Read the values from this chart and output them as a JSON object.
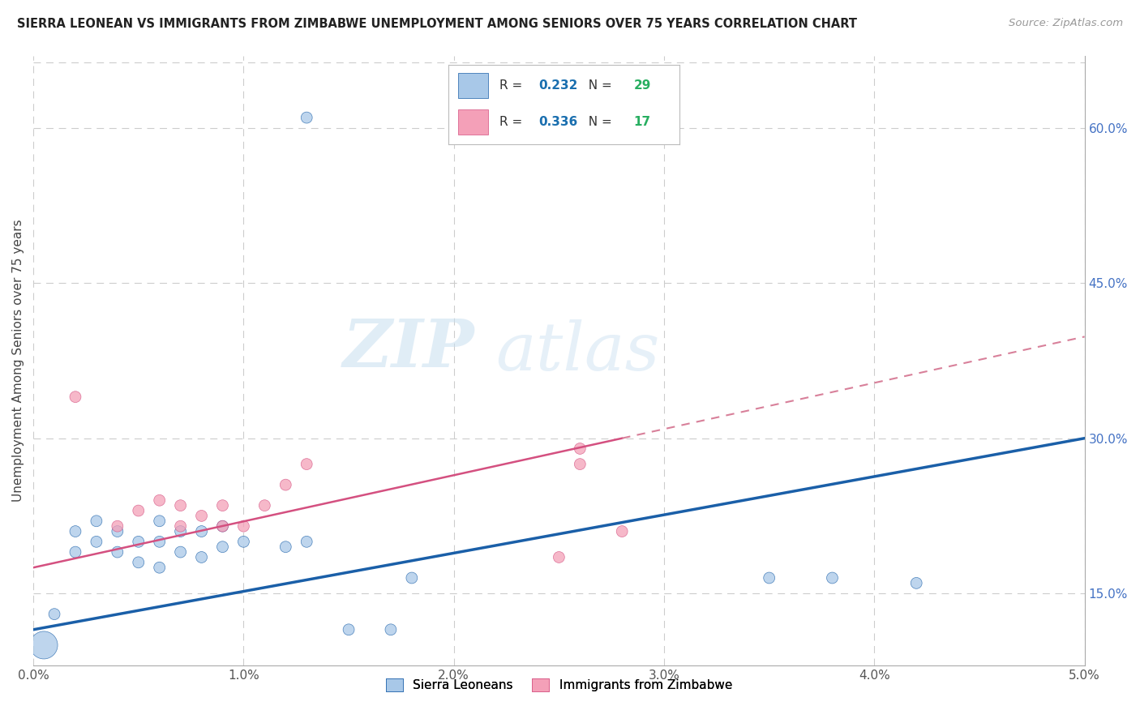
{
  "title": "SIERRA LEONEAN VS IMMIGRANTS FROM ZIMBABWE UNEMPLOYMENT AMONG SENIORS OVER 75 YEARS CORRELATION CHART",
  "source": "Source: ZipAtlas.com",
  "ylabel": "Unemployment Among Seniors over 75 years",
  "legend_label_1": "Sierra Leoneans",
  "legend_label_2": "Immigrants from Zimbabwe",
  "r1": 0.232,
  "n1": 29,
  "r2": 0.336,
  "n2": 17,
  "blue_color": "#a8c8e8",
  "pink_color": "#f4a0b8",
  "line_blue": "#1a5fa8",
  "line_pink": "#d45080",
  "line_pink_dashed": "#d8809a",
  "text_color_r": "#1a6faf",
  "text_color_n": "#27ae60",
  "xlim": [
    0.0,
    0.05
  ],
  "ylim": [
    0.08,
    0.67
  ],
  "right_yticks": [
    0.15,
    0.3,
    0.45,
    0.6
  ],
  "right_yticklabels": [
    "15.0%",
    "30.0%",
    "45.0%",
    "60.0%"
  ],
  "blue_scatter_x": [
    0.0005,
    0.001,
    0.002,
    0.002,
    0.003,
    0.003,
    0.004,
    0.004,
    0.005,
    0.005,
    0.006,
    0.006,
    0.006,
    0.007,
    0.007,
    0.008,
    0.008,
    0.009,
    0.009,
    0.01,
    0.012,
    0.013,
    0.013,
    0.015,
    0.017,
    0.018,
    0.035,
    0.038,
    0.042
  ],
  "blue_scatter_y": [
    0.1,
    0.13,
    0.19,
    0.21,
    0.2,
    0.22,
    0.19,
    0.21,
    0.18,
    0.2,
    0.175,
    0.2,
    0.22,
    0.19,
    0.21,
    0.185,
    0.21,
    0.195,
    0.215,
    0.2,
    0.195,
    0.2,
    0.61,
    0.115,
    0.115,
    0.165,
    0.165,
    0.165,
    0.16
  ],
  "blue_scatter_size": [
    600,
    100,
    100,
    100,
    100,
    100,
    100,
    100,
    100,
    100,
    100,
    100,
    100,
    100,
    100,
    100,
    100,
    100,
    100,
    100,
    100,
    100,
    100,
    100,
    100,
    100,
    100,
    100,
    100
  ],
  "pink_scatter_x": [
    0.002,
    0.004,
    0.005,
    0.006,
    0.007,
    0.007,
    0.008,
    0.009,
    0.009,
    0.01,
    0.011,
    0.012,
    0.013,
    0.025,
    0.026,
    0.026,
    0.028
  ],
  "pink_scatter_y": [
    0.34,
    0.215,
    0.23,
    0.24,
    0.215,
    0.235,
    0.225,
    0.215,
    0.235,
    0.215,
    0.235,
    0.255,
    0.275,
    0.185,
    0.275,
    0.29,
    0.21
  ],
  "pink_scatter_size": [
    100,
    100,
    100,
    100,
    100,
    100,
    100,
    100,
    100,
    100,
    100,
    100,
    100,
    100,
    100,
    100,
    100
  ],
  "watermark_zip": "ZIP",
  "watermark_atlas": "atlas",
  "bg_color": "#ffffff",
  "grid_color": "#cccccc",
  "grid_dash_color": "#dddddd"
}
